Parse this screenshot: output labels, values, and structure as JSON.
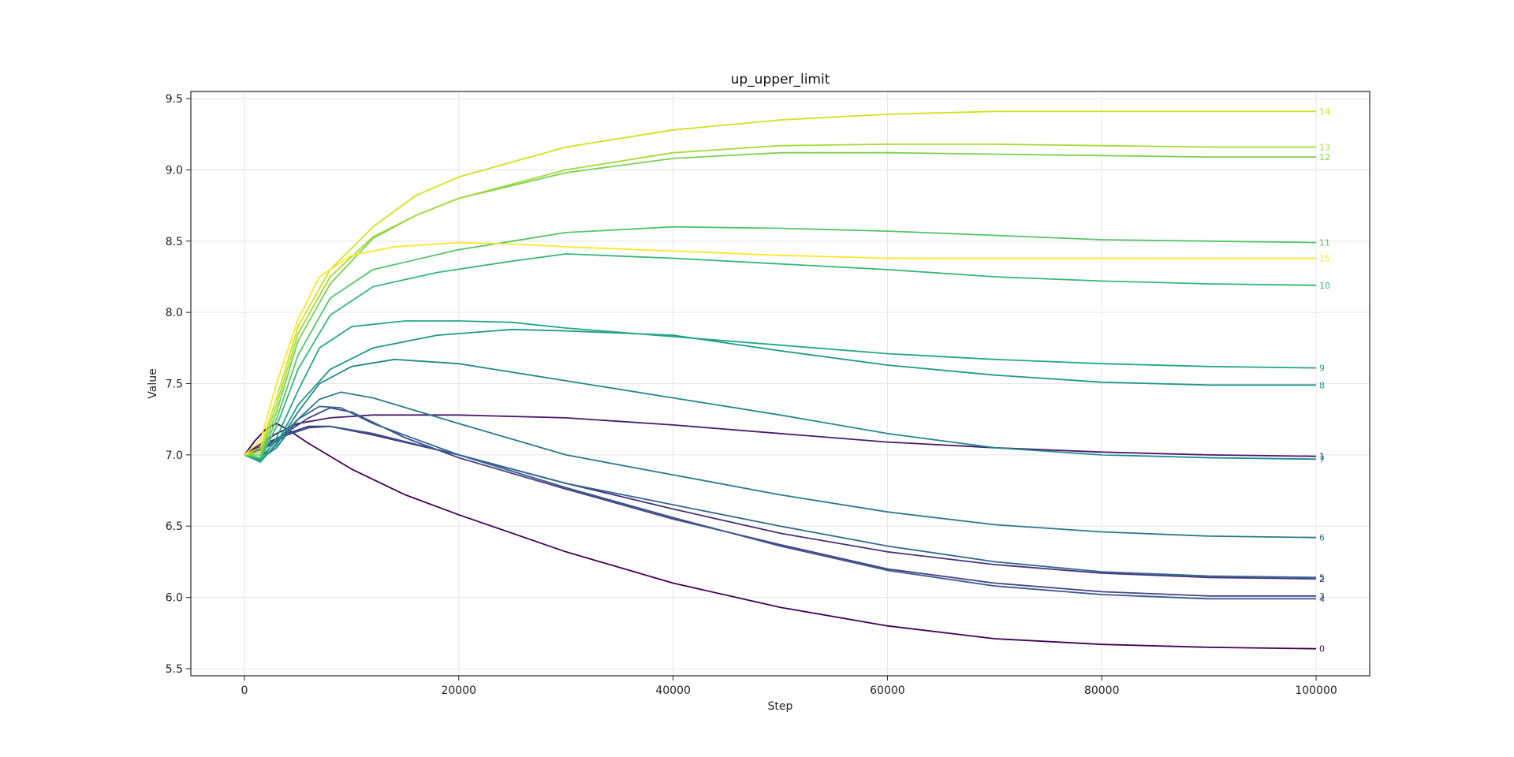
{
  "chart_data": {
    "type": "line",
    "title": "up_upper_limit",
    "xlabel": "Step",
    "ylabel": "Value",
    "xlim": [
      -5000,
      105000
    ],
    "ylim": [
      5.45,
      9.55
    ],
    "x_ticks": [
      0,
      20000,
      40000,
      60000,
      80000,
      100000
    ],
    "y_ticks": [
      5.5,
      6.0,
      6.5,
      7.0,
      7.5,
      8.0,
      8.5,
      9.0,
      9.5
    ],
    "y_tick_labels": [
      "5.5",
      "6.0",
      "6.5",
      "7.0",
      "7.5",
      "8.0",
      "8.5",
      "9.0",
      "9.5"
    ],
    "grid": true,
    "legend": "none (series labeled at right end of each line)",
    "series": [
      {
        "name": "0",
        "color": "#440154",
        "points": [
          [
            0,
            7.0
          ],
          [
            1000,
            7.1
          ],
          [
            2000,
            7.18
          ],
          [
            3000,
            7.22
          ],
          [
            4000,
            7.18
          ],
          [
            6000,
            7.08
          ],
          [
            10000,
            6.9
          ],
          [
            15000,
            6.72
          ],
          [
            20000,
            6.58
          ],
          [
            30000,
            6.32
          ],
          [
            40000,
            6.1
          ],
          [
            50000,
            5.93
          ],
          [
            60000,
            5.8
          ],
          [
            70000,
            5.71
          ],
          [
            80000,
            5.67
          ],
          [
            90000,
            5.65
          ],
          [
            100000,
            5.64
          ]
        ]
      },
      {
        "name": "1",
        "color": "#481a6c",
        "points": [
          [
            0,
            7.0
          ],
          [
            1000,
            7.05
          ],
          [
            3000,
            7.15
          ],
          [
            5000,
            7.22
          ],
          [
            8000,
            7.26
          ],
          [
            12000,
            7.28
          ],
          [
            20000,
            7.28
          ],
          [
            30000,
            7.26
          ],
          [
            40000,
            7.21
          ],
          [
            50000,
            7.15
          ],
          [
            60000,
            7.09
          ],
          [
            70000,
            7.05
          ],
          [
            80000,
            7.02
          ],
          [
            90000,
            7.0
          ],
          [
            100000,
            6.99
          ]
        ]
      },
      {
        "name": "2",
        "color": "#472f7d",
        "points": [
          [
            0,
            7.0
          ],
          [
            2000,
            7.08
          ],
          [
            4000,
            7.15
          ],
          [
            6000,
            7.2
          ],
          [
            8000,
            7.2
          ],
          [
            12000,
            7.14
          ],
          [
            20000,
            7.0
          ],
          [
            30000,
            6.8
          ],
          [
            40000,
            6.62
          ],
          [
            50000,
            6.45
          ],
          [
            60000,
            6.32
          ],
          [
            70000,
            6.23
          ],
          [
            80000,
            6.17
          ],
          [
            90000,
            6.14
          ],
          [
            100000,
            6.13
          ]
        ]
      },
      {
        "name": "3",
        "color": "#414487",
        "points": [
          [
            0,
            7.0
          ],
          [
            2000,
            7.06
          ],
          [
            4000,
            7.16
          ],
          [
            6000,
            7.26
          ],
          [
            8000,
            7.33
          ],
          [
            10000,
            7.3
          ],
          [
            15000,
            7.12
          ],
          [
            20000,
            6.98
          ],
          [
            30000,
            6.76
          ],
          [
            40000,
            6.55
          ],
          [
            50000,
            6.37
          ],
          [
            60000,
            6.2
          ],
          [
            70000,
            6.1
          ],
          [
            80000,
            6.04
          ],
          [
            90000,
            6.01
          ],
          [
            100000,
            6.01
          ]
        ]
      },
      {
        "name": "4",
        "color": "#39568c",
        "points": [
          [
            0,
            7.0
          ],
          [
            2000,
            7.05
          ],
          [
            4000,
            7.14
          ],
          [
            6000,
            7.19
          ],
          [
            8000,
            7.2
          ],
          [
            12000,
            7.15
          ],
          [
            20000,
            7.0
          ],
          [
            30000,
            6.77
          ],
          [
            40000,
            6.56
          ],
          [
            50000,
            6.36
          ],
          [
            60000,
            6.19
          ],
          [
            70000,
            6.08
          ],
          [
            80000,
            6.02
          ],
          [
            90000,
            5.99
          ],
          [
            100000,
            5.99
          ]
        ]
      },
      {
        "name": "5",
        "color": "#31688e",
        "points": [
          [
            0,
            7.0
          ],
          [
            1500,
            6.98
          ],
          [
            3000,
            7.1
          ],
          [
            5000,
            7.25
          ],
          [
            7000,
            7.34
          ],
          [
            9000,
            7.33
          ],
          [
            12000,
            7.22
          ],
          [
            20000,
            7.0
          ],
          [
            30000,
            6.8
          ],
          [
            40000,
            6.65
          ],
          [
            50000,
            6.5
          ],
          [
            60000,
            6.36
          ],
          [
            70000,
            6.25
          ],
          [
            80000,
            6.18
          ],
          [
            90000,
            6.15
          ],
          [
            100000,
            6.14
          ]
        ]
      },
      {
        "name": "6",
        "color": "#2a788e",
        "points": [
          [
            0,
            7.0
          ],
          [
            1500,
            6.97
          ],
          [
            3000,
            7.05
          ],
          [
            5000,
            7.25
          ],
          [
            7000,
            7.39
          ],
          [
            9000,
            7.44
          ],
          [
            12000,
            7.4
          ],
          [
            20000,
            7.22
          ],
          [
            30000,
            7.0
          ],
          [
            40000,
            6.86
          ],
          [
            50000,
            6.72
          ],
          [
            60000,
            6.6
          ],
          [
            70000,
            6.51
          ],
          [
            80000,
            6.46
          ],
          [
            90000,
            6.43
          ],
          [
            100000,
            6.42
          ]
        ]
      },
      {
        "name": "7",
        "color": "#23888e",
        "points": [
          [
            0,
            7.0
          ],
          [
            1500,
            6.96
          ],
          [
            3000,
            7.07
          ],
          [
            5000,
            7.3
          ],
          [
            7000,
            7.5
          ],
          [
            10000,
            7.62
          ],
          [
            14000,
            7.67
          ],
          [
            20000,
            7.64
          ],
          [
            30000,
            7.52
          ],
          [
            40000,
            7.4
          ],
          [
            50000,
            7.28
          ],
          [
            60000,
            7.15
          ],
          [
            70000,
            7.05
          ],
          [
            80000,
            7.0
          ],
          [
            90000,
            6.98
          ],
          [
            100000,
            6.97
          ]
        ]
      },
      {
        "name": "8",
        "color": "#1f988b",
        "points": [
          [
            0,
            7.0
          ],
          [
            1500,
            6.95
          ],
          [
            3000,
            7.08
          ],
          [
            5000,
            7.35
          ],
          [
            8000,
            7.6
          ],
          [
            12000,
            7.75
          ],
          [
            18000,
            7.84
          ],
          [
            25000,
            7.88
          ],
          [
            30000,
            7.87
          ],
          [
            40000,
            7.84
          ],
          [
            50000,
            7.73
          ],
          [
            60000,
            7.63
          ],
          [
            70000,
            7.56
          ],
          [
            80000,
            7.51
          ],
          [
            90000,
            7.49
          ],
          [
            100000,
            7.49
          ]
        ]
      },
      {
        "name": "9",
        "color": "#22a884",
        "points": [
          [
            0,
            7.0
          ],
          [
            1500,
            6.95
          ],
          [
            3000,
            7.12
          ],
          [
            5000,
            7.45
          ],
          [
            7000,
            7.75
          ],
          [
            10000,
            7.9
          ],
          [
            15000,
            7.94
          ],
          [
            20000,
            7.94
          ],
          [
            25000,
            7.93
          ],
          [
            30000,
            7.89
          ],
          [
            40000,
            7.83
          ],
          [
            50000,
            7.77
          ],
          [
            60000,
            7.71
          ],
          [
            70000,
            7.67
          ],
          [
            80000,
            7.64
          ],
          [
            90000,
            7.62
          ],
          [
            100000,
            7.61
          ]
        ]
      },
      {
        "name": "10",
        "color": "#35b779",
        "points": [
          [
            0,
            7.0
          ],
          [
            1500,
            6.97
          ],
          [
            3000,
            7.2
          ],
          [
            5000,
            7.6
          ],
          [
            8000,
            7.98
          ],
          [
            12000,
            8.18
          ],
          [
            18000,
            8.28
          ],
          [
            25000,
            8.36
          ],
          [
            30000,
            8.41
          ],
          [
            40000,
            8.38
          ],
          [
            50000,
            8.34
          ],
          [
            60000,
            8.3
          ],
          [
            70000,
            8.25
          ],
          [
            80000,
            8.22
          ],
          [
            90000,
            8.2
          ],
          [
            100000,
            8.19
          ]
        ]
      },
      {
        "name": "11",
        "color": "#54c568",
        "points": [
          [
            0,
            7.0
          ],
          [
            1500,
            6.98
          ],
          [
            3000,
            7.25
          ],
          [
            5000,
            7.7
          ],
          [
            8000,
            8.1
          ],
          [
            12000,
            8.3
          ],
          [
            20000,
            8.44
          ],
          [
            25000,
            8.5
          ],
          [
            30000,
            8.56
          ],
          [
            40000,
            8.6
          ],
          [
            50000,
            8.59
          ],
          [
            60000,
            8.57
          ],
          [
            70000,
            8.54
          ],
          [
            80000,
            8.51
          ],
          [
            90000,
            8.5
          ],
          [
            100000,
            8.49
          ]
        ]
      },
      {
        "name": "12",
        "color": "#7ad151",
        "points": [
          [
            0,
            7.0
          ],
          [
            1500,
            7.0
          ],
          [
            3000,
            7.3
          ],
          [
            5000,
            7.8
          ],
          [
            8000,
            8.2
          ],
          [
            12000,
            8.52
          ],
          [
            16000,
            8.68
          ],
          [
            20000,
            8.8
          ],
          [
            30000,
            8.98
          ],
          [
            40000,
            9.08
          ],
          [
            50000,
            9.12
          ],
          [
            60000,
            9.12
          ],
          [
            70000,
            9.11
          ],
          [
            80000,
            9.1
          ],
          [
            90000,
            9.09
          ],
          [
            100000,
            9.09
          ]
        ]
      },
      {
        "name": "13",
        "color": "#a5db36",
        "points": [
          [
            0,
            7.0
          ],
          [
            1500,
            7.02
          ],
          [
            3000,
            7.35
          ],
          [
            5000,
            7.85
          ],
          [
            8000,
            8.25
          ],
          [
            12000,
            8.53
          ],
          [
            16000,
            8.68
          ],
          [
            20000,
            8.8
          ],
          [
            30000,
            9.0
          ],
          [
            40000,
            9.12
          ],
          [
            50000,
            9.17
          ],
          [
            60000,
            9.18
          ],
          [
            70000,
            9.18
          ],
          [
            80000,
            9.17
          ],
          [
            90000,
            9.16
          ],
          [
            100000,
            9.16
          ]
        ]
      },
      {
        "name": "14",
        "color": "#d2e21b",
        "points": [
          [
            0,
            7.0
          ],
          [
            1500,
            7.05
          ],
          [
            3000,
            7.4
          ],
          [
            5000,
            7.9
          ],
          [
            8000,
            8.3
          ],
          [
            12000,
            8.6
          ],
          [
            16000,
            8.82
          ],
          [
            20000,
            8.95
          ],
          [
            30000,
            9.16
          ],
          [
            40000,
            9.28
          ],
          [
            50000,
            9.35
          ],
          [
            60000,
            9.39
          ],
          [
            70000,
            9.41
          ],
          [
            80000,
            9.41
          ],
          [
            90000,
            9.41
          ],
          [
            100000,
            9.41
          ]
        ]
      },
      {
        "name": "15",
        "color": "#fde725",
        "points": [
          [
            0,
            7.0
          ],
          [
            1500,
            7.1
          ],
          [
            3000,
            7.5
          ],
          [
            5000,
            7.95
          ],
          [
            7000,
            8.25
          ],
          [
            10000,
            8.4
          ],
          [
            14000,
            8.46
          ],
          [
            20000,
            8.49
          ],
          [
            25000,
            8.48
          ],
          [
            30000,
            8.46
          ],
          [
            40000,
            8.43
          ],
          [
            50000,
            8.4
          ],
          [
            60000,
            8.38
          ],
          [
            70000,
            8.38
          ],
          [
            80000,
            8.38
          ],
          [
            90000,
            8.38
          ],
          [
            100000,
            8.38
          ]
        ]
      }
    ]
  }
}
